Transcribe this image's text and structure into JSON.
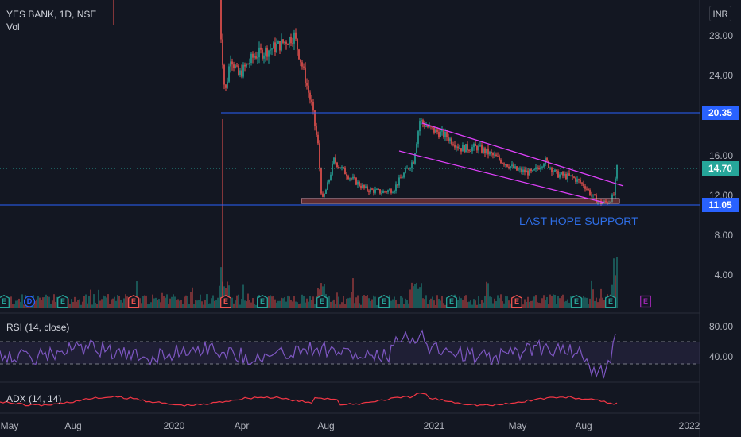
{
  "header": {
    "symbol_line": "YES BANK, 1D, NSE",
    "volume_label": "Vol"
  },
  "currency_button": "INR",
  "price_axis": {
    "ticks": [
      "28.00",
      "24.00",
      "16.00",
      "12.00",
      "8.00",
      "4.00"
    ],
    "tags": [
      {
        "value": "20.35",
        "color": "#2962ff"
      },
      {
        "value": "14.70",
        "color": "#26a69a"
      },
      {
        "value": "11.05",
        "color": "#2962ff"
      }
    ]
  },
  "annotation": "LAST HOPE SUPPORT",
  "rsi": {
    "label": "RSI (14, close)",
    "ticks": [
      "80.00",
      "40.00"
    ],
    "line_color": "#7e57c2"
  },
  "adx": {
    "label": "ADX (14, 14)",
    "line_color": "#f23645"
  },
  "time_axis": [
    "May",
    "Aug",
    "2020",
    "Apr",
    "Aug",
    "2021",
    "May",
    "Aug",
    "2022"
  ],
  "events": [
    {
      "letter": "E",
      "kind": "earnings"
    },
    {
      "letter": "D",
      "kind": "dividend"
    },
    {
      "letter": "E",
      "kind": "earnings"
    },
    {
      "letter": "E",
      "kind": "earnings"
    },
    {
      "letter": "E",
      "kind": "earnings"
    },
    {
      "letter": "E",
      "kind": "earnings"
    },
    {
      "letter": "E",
      "kind": "earnings"
    },
    {
      "letter": "E",
      "kind": "earnings"
    },
    {
      "letter": "E",
      "kind": "earnings"
    },
    {
      "letter": "E",
      "kind": "earnings"
    },
    {
      "letter": "E",
      "kind": "earnings"
    },
    {
      "letter": "E",
      "kind": "earnings"
    },
    {
      "letter": "E",
      "kind": "upcoming-earnings"
    }
  ],
  "colors": {
    "up": "#26a69a",
    "down": "#ef5350",
    "channel": "#e040fb",
    "level": "#2962ff",
    "background": "#131722"
  }
}
